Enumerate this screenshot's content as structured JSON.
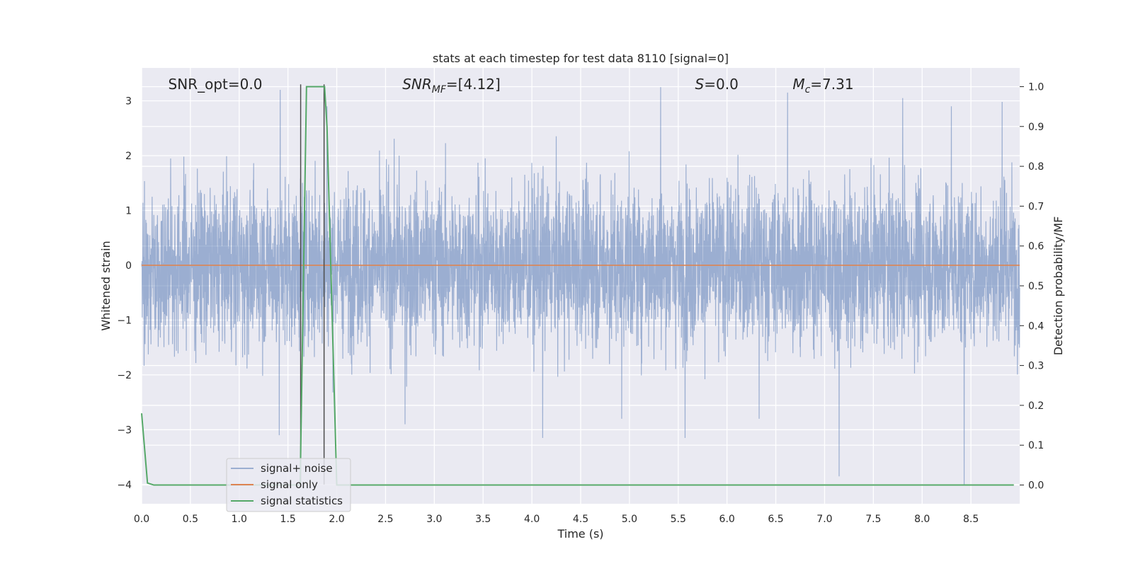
{
  "chart_data": {
    "type": "line",
    "title": "stats at each timestep for test data 8110 [signal=0]",
    "xlabel": "Time (s)",
    "ylabel": "Whitened strain",
    "y2label": "Detection probability/MF",
    "xlim": [
      0.0,
      9.0
    ],
    "ylim": [
      -4.35,
      3.6
    ],
    "y2lim": [
      -0.047,
      1.047
    ],
    "xticks": [
      0.0,
      0.5,
      1.0,
      1.5,
      2.0,
      2.5,
      3.0,
      3.5,
      4.0,
      4.5,
      5.0,
      5.5,
      6.0,
      6.5,
      7.0,
      7.5,
      8.0,
      8.5
    ],
    "xtick_labels": [
      "0.0",
      "0.5",
      "1.0",
      "1.5",
      "2.0",
      "2.5",
      "3.0",
      "3.5",
      "4.0",
      "4.5",
      "5.0",
      "5.5",
      "6.0",
      "6.5",
      "7.0",
      "7.5",
      "8.0",
      "8.5"
    ],
    "yticks": [
      3,
      2,
      1,
      0,
      -1,
      -2,
      -3,
      -4
    ],
    "ytick_labels": [
      "3",
      "2",
      "1",
      "0",
      "−1",
      "−2",
      "−3",
      "−4"
    ],
    "y2ticks": [
      1.0,
      0.9,
      0.8,
      0.7,
      0.6,
      0.5,
      0.4,
      0.3,
      0.2,
      0.1,
      0.0
    ],
    "y2tick_labels": [
      "1.0",
      "0.9",
      "0.8",
      "0.7",
      "0.6",
      "0.5",
      "0.4",
      "0.3",
      "0.2",
      "0.1",
      "0.0"
    ],
    "grid": true,
    "legend_position": "lower-left",
    "annotations": [
      {
        "text": "SNR_opt=0.0",
        "x": 0.2,
        "y": 3.3
      },
      {
        "text": "SNR_MF=[4.12]",
        "x": 2.6,
        "y": 3.3
      },
      {
        "text": "S=0.0",
        "x": 5.6,
        "y": 3.3
      },
      {
        "text": "M_c=7.31",
        "x": 6.6,
        "y": 3.3
      }
    ],
    "vertical_markers": [
      {
        "x": 1.63,
        "y_top": 3.3,
        "y_bottom": -4.0,
        "color": "#4d4d4d"
      },
      {
        "x": 1.87,
        "y_top": 3.3,
        "y_bottom": -4.0,
        "color": "#4d4d4d"
      }
    ],
    "series": [
      {
        "name": "signal+ noise",
        "axis": "left",
        "color": "#4c72b0",
        "opacity": 0.5,
        "style": "dense whitened noise, sample rate 512 Hz",
        "x_start": 0.0,
        "x_end": 9.0,
        "typical_range": [
          -1.8,
          1.8
        ],
        "peaks": [
          {
            "x": 1.42,
            "y": 3.2
          },
          {
            "x": 1.9,
            "y": 2.9
          },
          {
            "x": 2.64,
            "y": 2.0
          },
          {
            "x": 5.32,
            "y": 3.25
          },
          {
            "x": 6.62,
            "y": 3.15
          },
          {
            "x": 7.8,
            "y": 3.05
          },
          {
            "x": 8.3,
            "y": 2.9
          },
          {
            "x": 8.82,
            "y": 2.98
          }
        ],
        "troughs": [
          {
            "x": 1.41,
            "y": -3.1
          },
          {
            "x": 5.57,
            "y": -3.15
          },
          {
            "x": 6.33,
            "y": -2.8
          },
          {
            "x": 7.15,
            "y": -3.85
          },
          {
            "x": 8.43,
            "y": -4.0
          },
          {
            "x": 4.11,
            "y": -3.15
          },
          {
            "x": 2.7,
            "y": -2.9
          },
          {
            "x": 4.92,
            "y": -2.8
          }
        ]
      },
      {
        "name": "signal only",
        "axis": "left",
        "color": "#dd8452",
        "x": [
          0.0,
          9.0
        ],
        "y": [
          0.0,
          0.0
        ]
      },
      {
        "name": "signal statistics",
        "axis": "right",
        "color": "#55a868",
        "x": [
          0.0,
          0.06,
          0.125,
          0.25,
          0.5,
          1.0,
          1.5,
          1.625,
          1.69,
          1.75,
          1.875,
          1.9,
          2.0,
          2.5,
          3.0,
          4.0,
          5.0,
          6.0,
          7.0,
          8.0,
          8.94
        ],
        "y": [
          0.18,
          0.005,
          0.0,
          0.0,
          0.0,
          0.0,
          0.0,
          0.0,
          1.0,
          1.0,
          1.0,
          0.9,
          0.0,
          0.0,
          0.0,
          0.0,
          0.0,
          0.0,
          0.0,
          0.0,
          0.0
        ]
      }
    ]
  }
}
